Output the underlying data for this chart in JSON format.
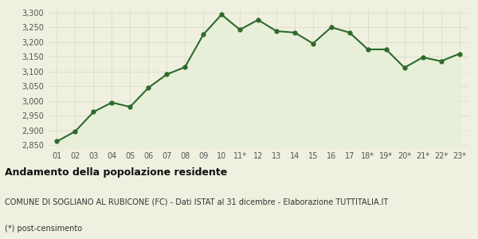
{
  "x_labels": [
    "01",
    "02",
    "03",
    "04",
    "05",
    "06",
    "07",
    "08",
    "09",
    "10",
    "11*",
    "12",
    "13",
    "14",
    "15",
    "16",
    "17",
    "18*",
    "19*",
    "20*",
    "21*",
    "22*",
    "23*"
  ],
  "values": [
    2863,
    2897,
    2963,
    2995,
    2980,
    3045,
    3090,
    3115,
    3225,
    3293,
    3242,
    3275,
    3237,
    3232,
    3195,
    3250,
    3232,
    3175,
    3175,
    3113,
    3148,
    3135,
    3160
  ],
  "line_color": "#2d6a2d",
  "fill_color": "#e8efd8",
  "bg_color": "#f0f0e0",
  "marker_size": 3.5,
  "linewidth": 1.5,
  "ylim": [
    2840,
    3310
  ],
  "yticks": [
    2850,
    2900,
    2950,
    3000,
    3050,
    3100,
    3150,
    3200,
    3250,
    3300
  ],
  "title": "Andamento della popolazione residente",
  "subtitle": "COMUNE DI SOGLIANO AL RUBICONE (FC) - Dati ISTAT al 31 dicembre - Elaborazione TUTTITALIA.IT",
  "footnote": "(*) post-censimento",
  "title_fontsize": 9,
  "subtitle_fontsize": 7,
  "footnote_fontsize": 7,
  "tick_fontsize": 7,
  "grid_color": "#d8d8c8"
}
